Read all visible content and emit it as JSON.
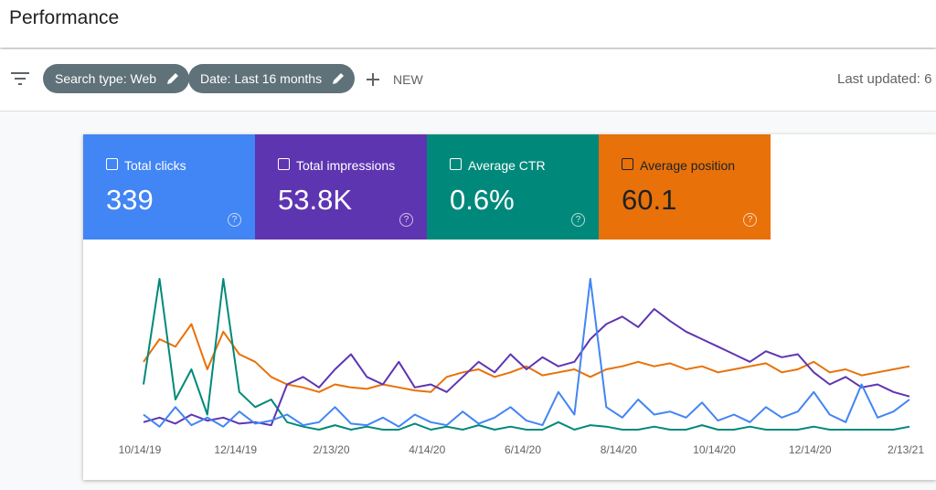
{
  "header": {
    "title": "Performance"
  },
  "toolbar": {
    "chips": [
      "Search type: Web",
      "Date: Last 16 months"
    ],
    "new_button": "NEW",
    "last_updated": "Last updated: 6"
  },
  "cards": [
    {
      "label": "Total clicks",
      "value": "339"
    },
    {
      "label": "Total impressions",
      "value": "53.8K"
    },
    {
      "label": "Average CTR",
      "value": "0.6%"
    },
    {
      "label": "Average position",
      "value": "60.1"
    }
  ],
  "chart_data": {
    "type": "line",
    "categories": [
      "10/14/19",
      null,
      null,
      null,
      null,
      null,
      "12/14/19",
      null,
      null,
      null,
      null,
      null,
      "2/13/20",
      null,
      null,
      null,
      null,
      null,
      "4/14/20",
      null,
      null,
      null,
      null,
      null,
      "6/14/20",
      null,
      null,
      null,
      null,
      null,
      "8/14/20",
      null,
      null,
      null,
      null,
      null,
      "10/14/20",
      null,
      null,
      null,
      null,
      null,
      "12/14/20",
      null,
      null,
      null,
      null,
      null,
      "2/13/21"
    ],
    "ylim": [
      0,
      100
    ],
    "series": [
      {
        "name": "Total clicks",
        "color": "#4285f4",
        "values": [
          10,
          2,
          15,
          3,
          8,
          2,
          12,
          4,
          6,
          10,
          3,
          5,
          15,
          4,
          3,
          8,
          2,
          10,
          5,
          3,
          12,
          4,
          8,
          15,
          6,
          3,
          25,
          10,
          100,
          15,
          8,
          20,
          10,
          12,
          8,
          18,
          6,
          10,
          5,
          15,
          8,
          12,
          25,
          10,
          5,
          30,
          8,
          12,
          20
        ]
      },
      {
        "name": "Total impressions",
        "color": "#5e35b1",
        "values": [
          5,
          8,
          4,
          10,
          6,
          8,
          4,
          5,
          3,
          30,
          35,
          28,
          40,
          50,
          35,
          30,
          45,
          28,
          30,
          25,
          35,
          45,
          38,
          50,
          40,
          48,
          42,
          45,
          60,
          70,
          75,
          68,
          80,
          72,
          65,
          60,
          55,
          50,
          45,
          52,
          48,
          50,
          38,
          30,
          35,
          28,
          30,
          25,
          22
        ]
      },
      {
        "name": "Average CTR",
        "color": "#00897b",
        "values": [
          30,
          100,
          20,
          40,
          10,
          100,
          25,
          15,
          20,
          5,
          2,
          0,
          3,
          0,
          2,
          0,
          0,
          4,
          0,
          2,
          0,
          3,
          0,
          2,
          0,
          0,
          5,
          0,
          3,
          2,
          0,
          0,
          2,
          0,
          0,
          3,
          0,
          0,
          2,
          0,
          0,
          0,
          2,
          0,
          0,
          0,
          0,
          0,
          2
        ]
      },
      {
        "name": "Average position",
        "color": "#e8710a",
        "values": [
          45,
          60,
          55,
          70,
          40,
          65,
          50,
          45,
          35,
          30,
          28,
          25,
          30,
          28,
          27,
          30,
          28,
          26,
          25,
          35,
          38,
          40,
          35,
          38,
          42,
          36,
          38,
          40,
          35,
          40,
          42,
          45,
          42,
          44,
          40,
          42,
          38,
          40,
          42,
          44,
          38,
          40,
          45,
          38,
          40,
          36,
          38,
          40,
          42
        ]
      }
    ]
  }
}
